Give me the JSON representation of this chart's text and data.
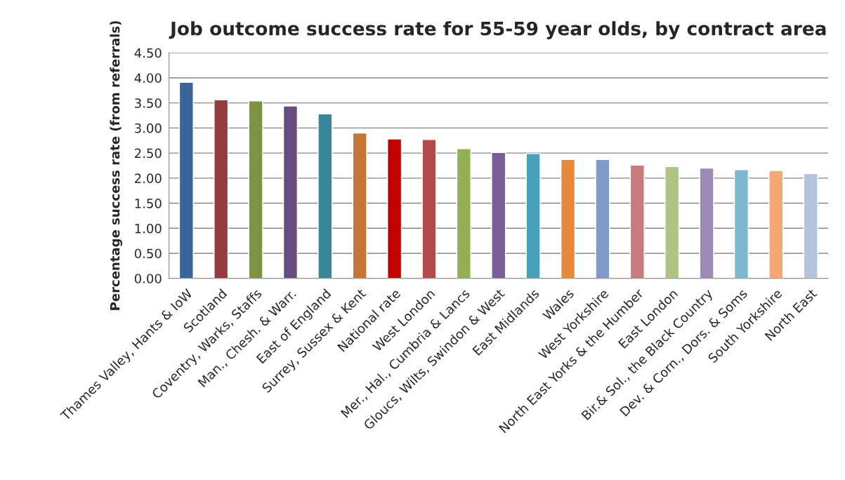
{
  "chart_data": {
    "type": "bar",
    "title": "Job outcome success rate for 55-59 year olds, by contract area",
    "ylabel": "Percentage success rate (from referrals)",
    "categories": [
      "Thames Valley, Hants & IoW",
      "Scotland",
      "Coventry, Warks, Staffs",
      "Man., Chesh. & Warr.",
      "East of England",
      "Surrey, Sussex & Kent",
      "National rate",
      "West London",
      "Mer., Hal., Cumbria & Lancs",
      "Gloucs, Wilts, Swindon & West",
      "East Midlands",
      "Wales",
      "West Yorkshire",
      "North East Yorks & the Humber",
      "East London",
      "Bir.& Sol., the Black Country",
      "Dev. & Corn., Dors. & Soms",
      "South Yorkshire",
      "North East"
    ],
    "values": [
      3.91,
      3.56,
      3.54,
      3.44,
      3.28,
      2.9,
      2.78,
      2.77,
      2.59,
      2.51,
      2.49,
      2.37,
      2.37,
      2.26,
      2.23,
      2.2,
      2.17,
      2.15,
      2.09
    ],
    "colors": [
      "#3c6496",
      "#963c3c",
      "#7a9443",
      "#634e7f",
      "#39869b",
      "#c47636",
      "#c00000",
      "#b34a4a",
      "#93b053",
      "#785f98",
      "#48a1bb",
      "#e68a3e",
      "#7f9cc8",
      "#c97a7a",
      "#aec584",
      "#9c8ab5",
      "#7cb9cf",
      "#f5a774",
      "#b4c4de"
    ],
    "ylim": [
      0,
      4.5
    ],
    "yticks": [
      {
        "value": 0,
        "label": "0.00"
      },
      {
        "value": 0.5,
        "label": "0.50"
      },
      {
        "value": 1,
        "label": "1.00"
      },
      {
        "value": 1.5,
        "label": "1.50"
      },
      {
        "value": 2,
        "label": "2.00"
      },
      {
        "value": 2.5,
        "label": "2.50"
      },
      {
        "value": 3,
        "label": "3.00"
      },
      {
        "value": 3.5,
        "label": "3.50"
      },
      {
        "value": 4,
        "label": "4.00"
      },
      {
        "value": 4.5,
        "label": "4.50"
      }
    ],
    "grid": "y"
  }
}
